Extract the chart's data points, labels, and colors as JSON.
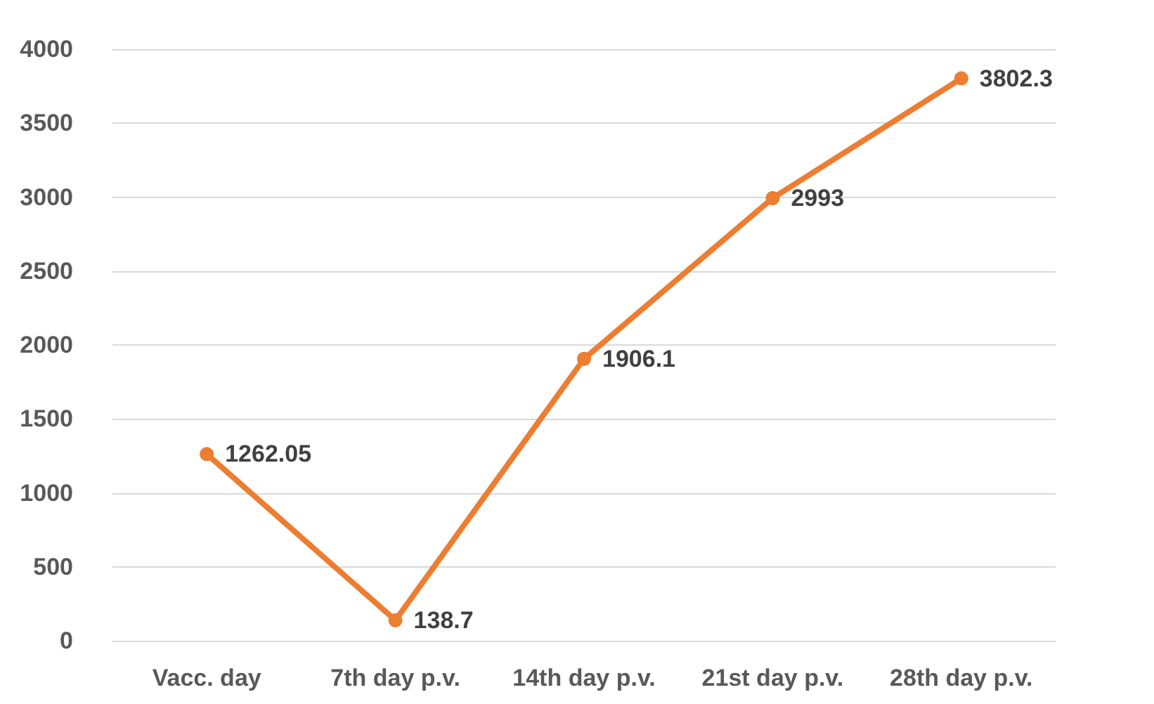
{
  "chart_data": {
    "type": "line",
    "categories": [
      "Vacc. day",
      "7th day p.v.",
      "14th day p.v.",
      "21st day p.v.",
      "28th day p.v."
    ],
    "values": [
      1262.05,
      138.7,
      1906.1,
      2993,
      3802.3
    ],
    "color": "#ed7d31",
    "ylim": [
      0,
      4000
    ],
    "yticks": [
      0,
      500,
      1000,
      1500,
      2000,
      2500,
      3000,
      3500,
      4000
    ],
    "grid": "y",
    "marker": "circle",
    "line_style": "solid",
    "data_labels": true
  }
}
